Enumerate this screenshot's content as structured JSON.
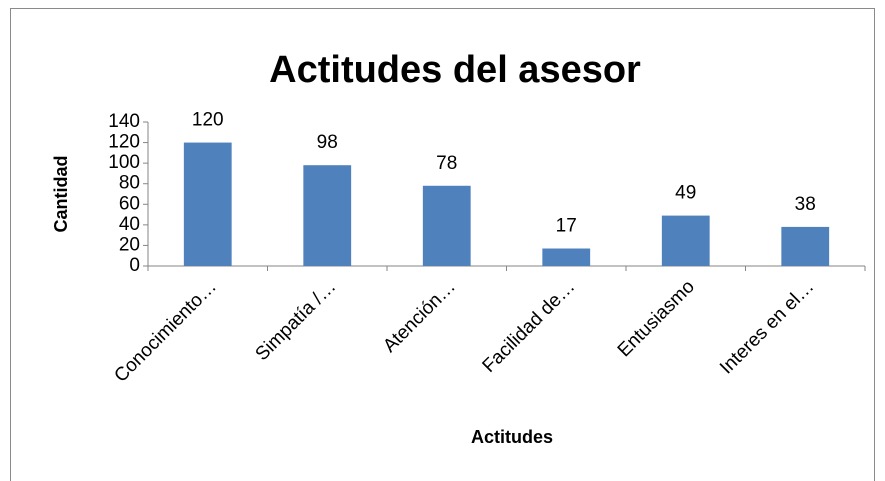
{
  "chart_data": {
    "type": "bar",
    "title": "Actitudes del asesor",
    "categories": [
      "Conocimiento…",
      "Simpatía /…",
      "Atención…",
      "Facilidad de…",
      "Entusiasmo",
      "Interes en el…"
    ],
    "values": [
      120,
      98,
      78,
      17,
      49,
      38
    ],
    "color": "#4f81bd",
    "x_label": "Actitudes",
    "y_label": "Cantidad",
    "ylim": [
      0,
      140
    ],
    "yticks": [
      0,
      20,
      40,
      60,
      80,
      100,
      120,
      140
    ],
    "grid": false
  }
}
